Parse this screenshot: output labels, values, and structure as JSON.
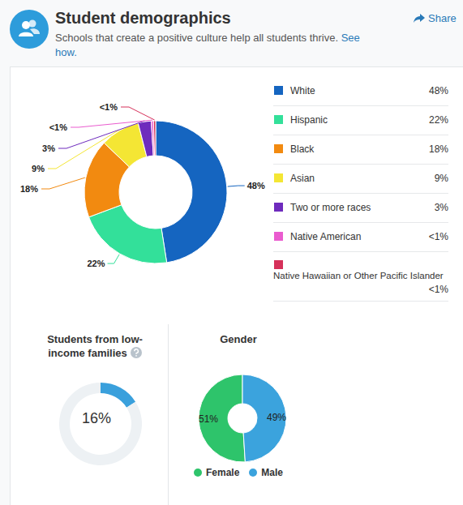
{
  "header": {
    "title": "Student demographics",
    "subtitle": "Schools that create a positive culture help all students thrive.",
    "link": "See how.",
    "share": "Share"
  },
  "chart_data": [
    {
      "type": "pie",
      "categories": [
        "White",
        "Hispanic",
        "Black",
        "Asian",
        "Two or more races",
        "Native American",
        "Native Hawaiian or Other Pacific Islander"
      ],
      "values": [
        48,
        22,
        18,
        9,
        3,
        0.5,
        0.5
      ],
      "value_labels": [
        "48%",
        "22%",
        "18%",
        "9%",
        "3%",
        "<1%",
        "<1%"
      ],
      "colors": [
        "#1565c0",
        "#33e09a",
        "#f28a10",
        "#f4e634",
        "#6e2bbd",
        "#ea5ccf",
        "#d6315a"
      ],
      "data_labels": true,
      "legend": "right"
    },
    {
      "type": "pie",
      "title": "Students from low-income families",
      "values": [
        16,
        84
      ],
      "value_labels": [
        "16%",
        null
      ],
      "colors": [
        "#3aa0dc",
        "#edf1f4"
      ],
      "data_labels": true
    },
    {
      "type": "pie",
      "title": "Gender",
      "categories": [
        "Female",
        "Male"
      ],
      "values": [
        51,
        49
      ],
      "value_labels": [
        "51%",
        "49%"
      ],
      "colors": [
        "#2ec46b",
        "#3ba3dd"
      ],
      "data_labels": true,
      "legend": "bottom"
    }
  ]
}
